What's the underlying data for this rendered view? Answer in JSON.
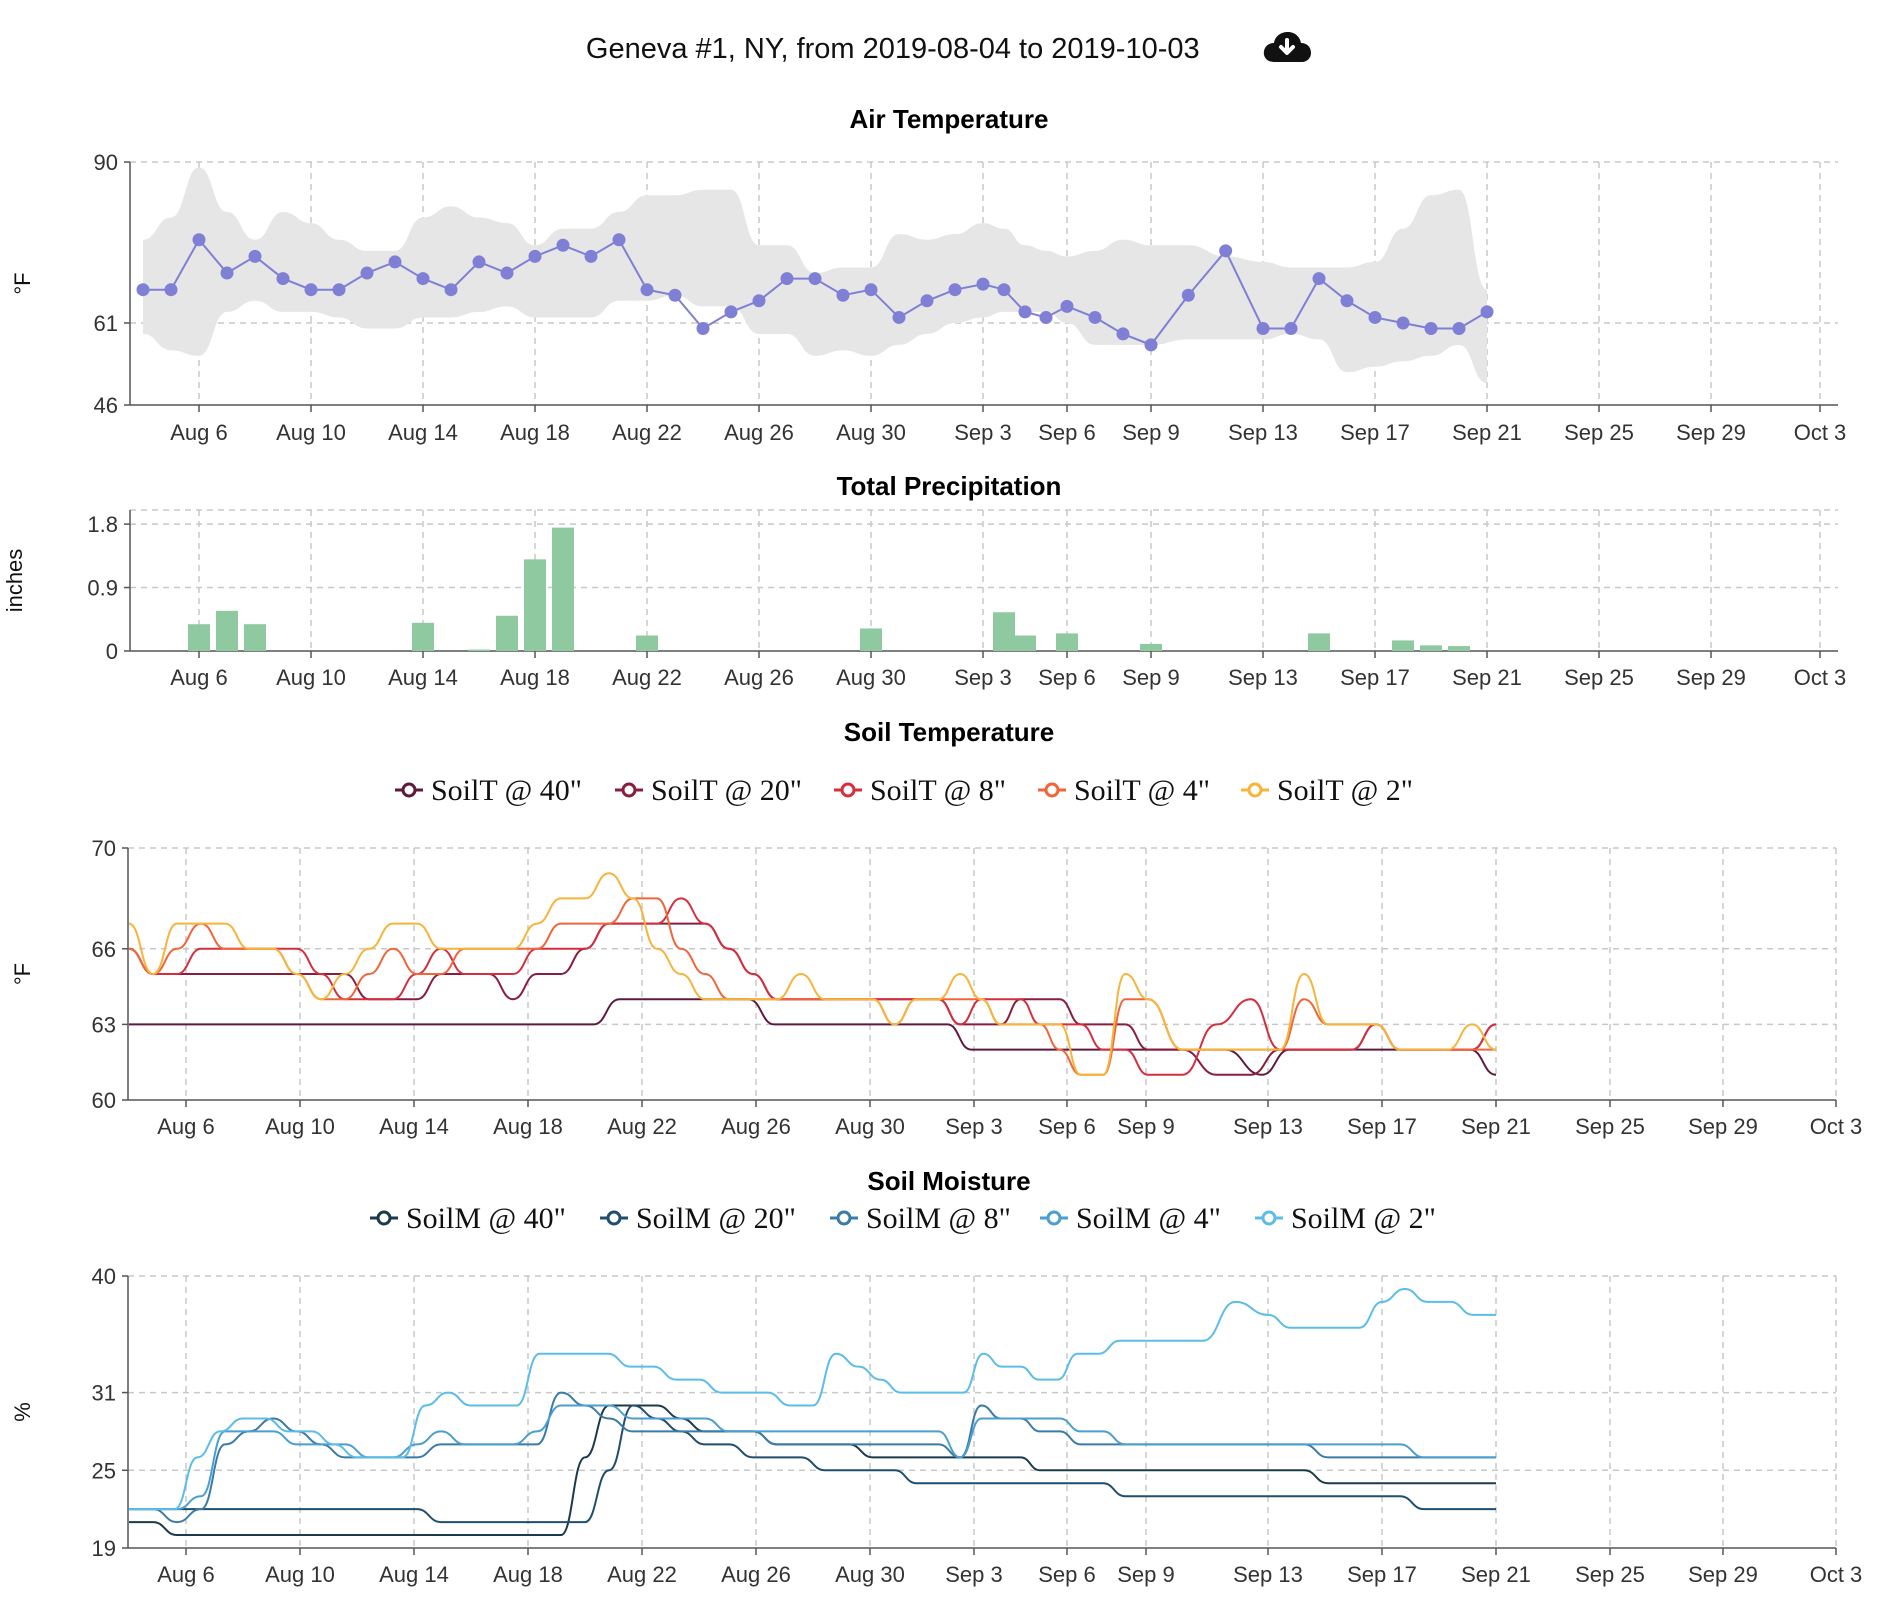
{
  "header": {
    "title": "Geneva #1, NY, from 2019-08-04 to 2019-10-03",
    "download_icon": "cloud-download-icon"
  },
  "x_ticks": [
    "Aug 6",
    "Aug 10",
    "Aug 14",
    "Aug 18",
    "Aug 22",
    "Aug 26",
    "Aug 30",
    "Sep 3",
    "Sep 6",
    "Sep 9",
    "Sep 13",
    "Sep 17",
    "Sep 21",
    "Sep 25",
    "Sep 29",
    "Oct 3"
  ],
  "colors": {
    "air": "#7f7fd5",
    "air_band": "#e6e6e6",
    "precip": "#8fc9a0",
    "soilT": [
      "#5e1a3e",
      "#8a1c3e",
      "#d32f3f",
      "#f0653a",
      "#f6b43a"
    ],
    "soilM": [
      "#1b3a4b",
      "#1f4e6e",
      "#3a7ba8",
      "#4a9ed0",
      "#5bbde8"
    ]
  },
  "chart_data": [
    {
      "type": "line",
      "title": "Air Temperature",
      "ylabel": "°F",
      "yticks": [
        46,
        61,
        90
      ],
      "ylim": [
        46,
        90
      ],
      "x_start": "2019-08-04",
      "x_end": "2019-10-03",
      "band_low": [
        59,
        56,
        55,
        63,
        65,
        63,
        63,
        62,
        60,
        60,
        62,
        62,
        63,
        64,
        62,
        62,
        62,
        65,
        65,
        66,
        64,
        64,
        59,
        59,
        55,
        56,
        55,
        57,
        59,
        61,
        62,
        63,
        63,
        63,
        61,
        57,
        57,
        57,
        58,
        58,
        58,
        59,
        58,
        52,
        53,
        54,
        55,
        57,
        50,
        50,
        61,
        63,
        61,
        57,
        55,
        52,
        49,
        48,
        48,
        49,
        51
      ],
      "band_high": [
        76,
        80,
        89,
        81,
        76,
        81,
        79,
        76,
        74,
        74,
        80,
        82,
        80,
        79,
        75,
        78,
        78,
        81,
        84,
        84,
        85,
        85,
        75,
        75,
        70,
        71,
        71,
        77,
        76,
        77,
        79,
        78,
        75,
        74,
        73,
        74,
        76,
        75,
        75,
        73,
        72,
        71,
        71,
        71,
        72,
        78,
        84,
        85,
        67,
        67,
        73,
        75,
        75,
        74,
        73,
        73,
        73,
        72,
        70,
        70,
        75
      ],
      "values": [
        67,
        67,
        76,
        70,
        73,
        69,
        67,
        67,
        70,
        72,
        69,
        67,
        72,
        70,
        73,
        75,
        73,
        76,
        67,
        66,
        60,
        63,
        65,
        69,
        69,
        66,
        67,
        62,
        65,
        67,
        68,
        67,
        63,
        62,
        64,
        62,
        59,
        57,
        66,
        74,
        60,
        60,
        69,
        65,
        62,
        61,
        60,
        60,
        63
      ]
    },
    {
      "type": "bar",
      "title": "Total Precipitation",
      "ylabel": "inches",
      "yticks": [
        0,
        0.9,
        1.8
      ],
      "ylim": [
        0,
        2.0
      ],
      "x_start": "2019-08-04",
      "values": [
        0,
        0,
        0.38,
        0.57,
        0.38,
        0,
        0,
        0,
        0,
        0,
        0.4,
        0,
        0.02,
        0.5,
        1.3,
        1.75,
        0,
        0,
        0.22,
        0,
        0,
        0,
        0,
        0,
        0,
        0,
        0.32,
        0,
        0,
        0,
        0,
        0.55,
        0.22,
        0,
        0.25,
        0,
        0,
        0.1,
        0,
        0,
        0,
        0,
        0.25,
        0,
        0,
        0.15,
        0.08,
        0.07
      ]
    },
    {
      "type": "line",
      "title": "Soil Temperature",
      "ylabel": "°F",
      "yticks": [
        60,
        63,
        66,
        70
      ],
      "ylim": [
        60,
        70
      ],
      "x_start": "2019-08-04",
      "legend": "top",
      "series": [
        {
          "name": "SoilT @ 40\"",
          "values": [
            63,
            63,
            63,
            63,
            63,
            63,
            63,
            63,
            63,
            63,
            63,
            63,
            63,
            63,
            63,
            63,
            63,
            63,
            63,
            64,
            64,
            64,
            64,
            64,
            64,
            63,
            63,
            63,
            63,
            63,
            63,
            63,
            63,
            62,
            62,
            62,
            62,
            62,
            62,
            62,
            62,
            62,
            62,
            62,
            61,
            62,
            62,
            62,
            62,
            62,
            62,
            62,
            62,
            61
          ]
        },
        {
          "name": "SoilT @ 20\"",
          "values": [
            66,
            65,
            65,
            65,
            65,
            65,
            65,
            65,
            65,
            65,
            64,
            64,
            64,
            65,
            65,
            65,
            64,
            65,
            65,
            66,
            67,
            67,
            67,
            67,
            67,
            66,
            65,
            64,
            64,
            64,
            64,
            64,
            64,
            64,
            64,
            63,
            63,
            63,
            64,
            64,
            64,
            63,
            63,
            63,
            62,
            62,
            61,
            61,
            62,
            62,
            62,
            62,
            63,
            62,
            62,
            62,
            62,
            63
          ]
        },
        {
          "name": "SoilT @ 8\"",
          "values": [
            66,
            65,
            65,
            66,
            66,
            66,
            66,
            66,
            65,
            64,
            64,
            64,
            65,
            66,
            65,
            65,
            65,
            66,
            66,
            66,
            67,
            67,
            67,
            68,
            67,
            66,
            65,
            64,
            64,
            64,
            64,
            64,
            64,
            64,
            64,
            63,
            64,
            64,
            64,
            63,
            63,
            63,
            62,
            62,
            61,
            61,
            63,
            64,
            62,
            62,
            62,
            62,
            63,
            62,
            62,
            62,
            62,
            63
          ]
        },
        {
          "name": "SoilT @ 4\"",
          "values": [
            66,
            65,
            66,
            67,
            66,
            66,
            66,
            65,
            64,
            64,
            65,
            66,
            65,
            65,
            66,
            66,
            66,
            66,
            67,
            67,
            67,
            68,
            68,
            66,
            65,
            64,
            64,
            64,
            64,
            64,
            64,
            64,
            63,
            64,
            64,
            64,
            64,
            63,
            63,
            63,
            62,
            61,
            61,
            64,
            64,
            62,
            62,
            62,
            62,
            64,
            63,
            63,
            63,
            62,
            62,
            62,
            62,
            62
          ]
        },
        {
          "name": "SoilT @ 2\"",
          "values": [
            67,
            65,
            67,
            67,
            67,
            66,
            66,
            65,
            64,
            65,
            66,
            67,
            67,
            66,
            66,
            66,
            66,
            67,
            68,
            68,
            69,
            68,
            66,
            65,
            64,
            64,
            64,
            64,
            65,
            64,
            64,
            64,
            63,
            64,
            64,
            65,
            64,
            63,
            63,
            63,
            63,
            61,
            61,
            65,
            64,
            62,
            62,
            62,
            62,
            65,
            63,
            63,
            63,
            62,
            62,
            62,
            63,
            62
          ]
        }
      ]
    },
    {
      "type": "line",
      "title": "Soil Moisture",
      "ylabel": "%",
      "yticks": [
        19,
        25,
        31,
        40
      ],
      "ylim": [
        19,
        40
      ],
      "x_start": "2019-08-04",
      "legend": "top",
      "series": [
        {
          "name": "SoilM @ 40\"",
          "values": [
            21,
            21,
            20,
            20,
            20,
            20,
            20,
            20,
            20,
            20,
            20,
            20,
            20,
            20,
            20,
            20,
            20,
            20,
            20,
            26,
            30,
            30,
            30,
            29,
            28,
            28,
            28,
            27,
            27,
            27,
            27,
            26,
            26,
            26,
            26,
            26,
            26,
            26,
            26,
            25,
            25,
            25,
            25,
            25,
            25,
            25,
            25,
            25,
            25,
            25,
            24,
            24,
            24,
            24,
            24,
            24,
            24,
            24
          ]
        },
        {
          "name": "SoilM @ 20\"",
          "values": [
            22,
            22,
            22,
            22,
            22,
            22,
            22,
            22,
            22,
            22,
            22,
            22,
            22,
            21,
            21,
            21,
            21,
            21,
            21,
            21,
            25,
            30,
            29,
            28,
            27,
            27,
            26,
            26,
            26,
            25,
            25,
            25,
            25,
            24,
            24,
            24,
            24,
            24,
            24,
            24,
            24,
            24,
            24,
            23,
            23,
            23,
            23,
            23,
            23,
            23,
            23,
            23,
            23,
            23,
            22,
            22,
            22,
            22
          ]
        },
        {
          "name": "SoilM @ 8\"",
          "values": [
            22,
            22,
            21,
            22,
            27,
            28,
            29,
            28,
            27,
            26,
            26,
            26,
            26,
            27,
            27,
            27,
            27,
            27,
            31,
            30,
            29,
            28,
            28,
            28,
            28,
            28,
            28,
            27,
            27,
            27,
            27,
            27,
            27,
            27,
            27,
            26,
            30,
            29,
            29,
            28,
            28,
            27,
            27,
            27,
            27,
            27,
            27,
            27,
            27,
            27,
            26,
            26,
            26,
            26,
            26,
            26,
            26,
            26
          ]
        },
        {
          "name": "SoilM @ 4\"",
          "values": [
            22,
            22,
            22,
            23,
            28,
            28,
            28,
            27,
            27,
            27,
            26,
            26,
            27,
            28,
            27,
            27,
            27,
            28,
            30,
            30,
            30,
            29,
            29,
            29,
            29,
            28,
            28,
            28,
            28,
            28,
            28,
            28,
            28,
            28,
            28,
            26,
            29,
            29,
            29,
            29,
            29,
            28,
            28,
            27,
            27,
            27,
            27,
            27,
            27,
            27,
            27,
            27,
            27,
            27,
            26,
            26,
            26,
            26
          ]
        },
        {
          "name": "SoilM @ 2\"",
          "values": [
            22,
            22,
            22,
            26,
            28,
            29,
            29,
            28,
            28,
            27,
            26,
            26,
            26,
            30,
            31,
            30,
            30,
            30,
            34,
            34,
            34,
            34,
            33,
            33,
            32,
            32,
            31,
            31,
            31,
            30,
            30,
            34,
            33,
            32,
            31,
            31,
            31,
            31,
            34,
            33,
            33,
            32,
            32,
            34,
            34,
            35,
            35,
            35,
            35,
            38,
            37,
            36,
            36,
            36,
            36,
            38,
            39,
            38,
            38,
            37,
            37
          ]
        }
      ]
    }
  ]
}
